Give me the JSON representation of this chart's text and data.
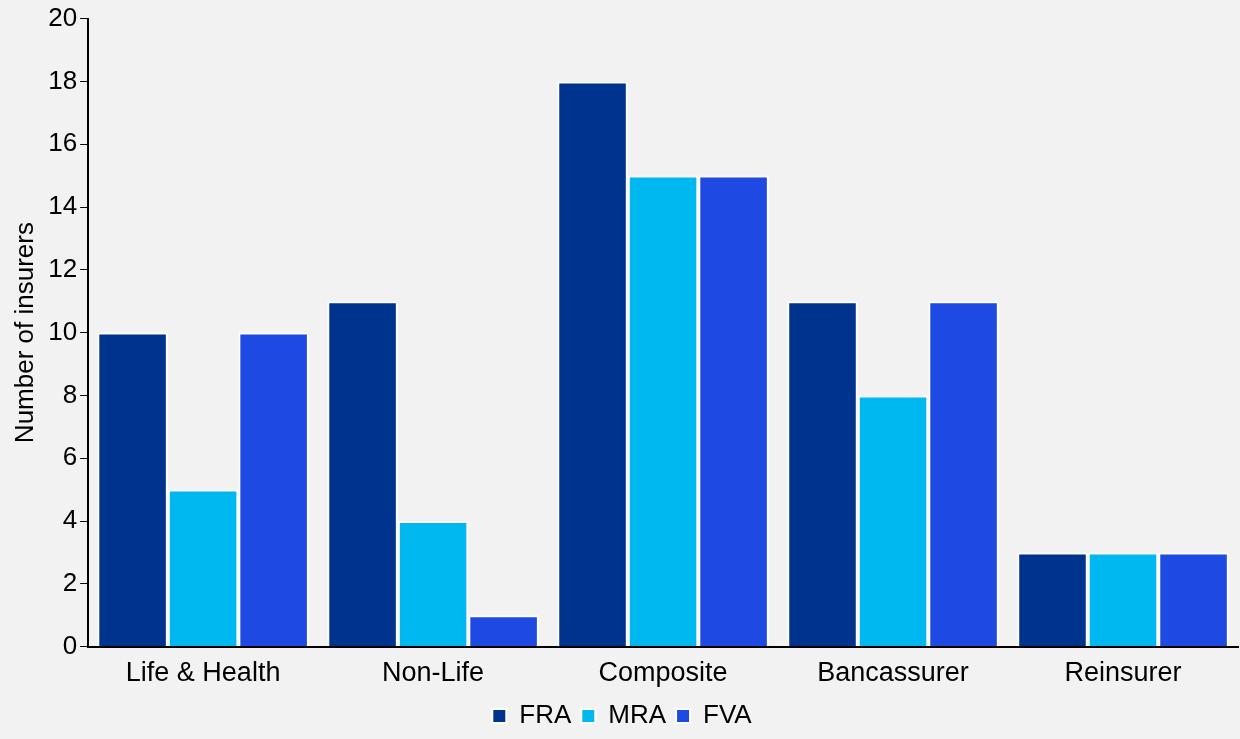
{
  "chart_data": {
    "type": "bar",
    "ylabel": "Number of insurers",
    "categories": [
      "Life & Health",
      "Non-Life",
      "Composite",
      "Bancassurer",
      "Reinsurer"
    ],
    "series": [
      {
        "name": "FRA",
        "color": "#00338d",
        "values": [
          10,
          11,
          18,
          11,
          3
        ]
      },
      {
        "name": "MRA",
        "color": "#00b8f0",
        "values": [
          5,
          4,
          15,
          8,
          3
        ]
      },
      {
        "name": "FVA",
        "color": "#1e49e2",
        "values": [
          10,
          1,
          15,
          11,
          3
        ]
      }
    ],
    "ylim": [
      0,
      20
    ],
    "yticks": [
      0,
      2,
      4,
      6,
      8,
      10,
      12,
      14,
      16,
      18,
      20
    ],
    "grid": false,
    "legend": "bottom"
  }
}
